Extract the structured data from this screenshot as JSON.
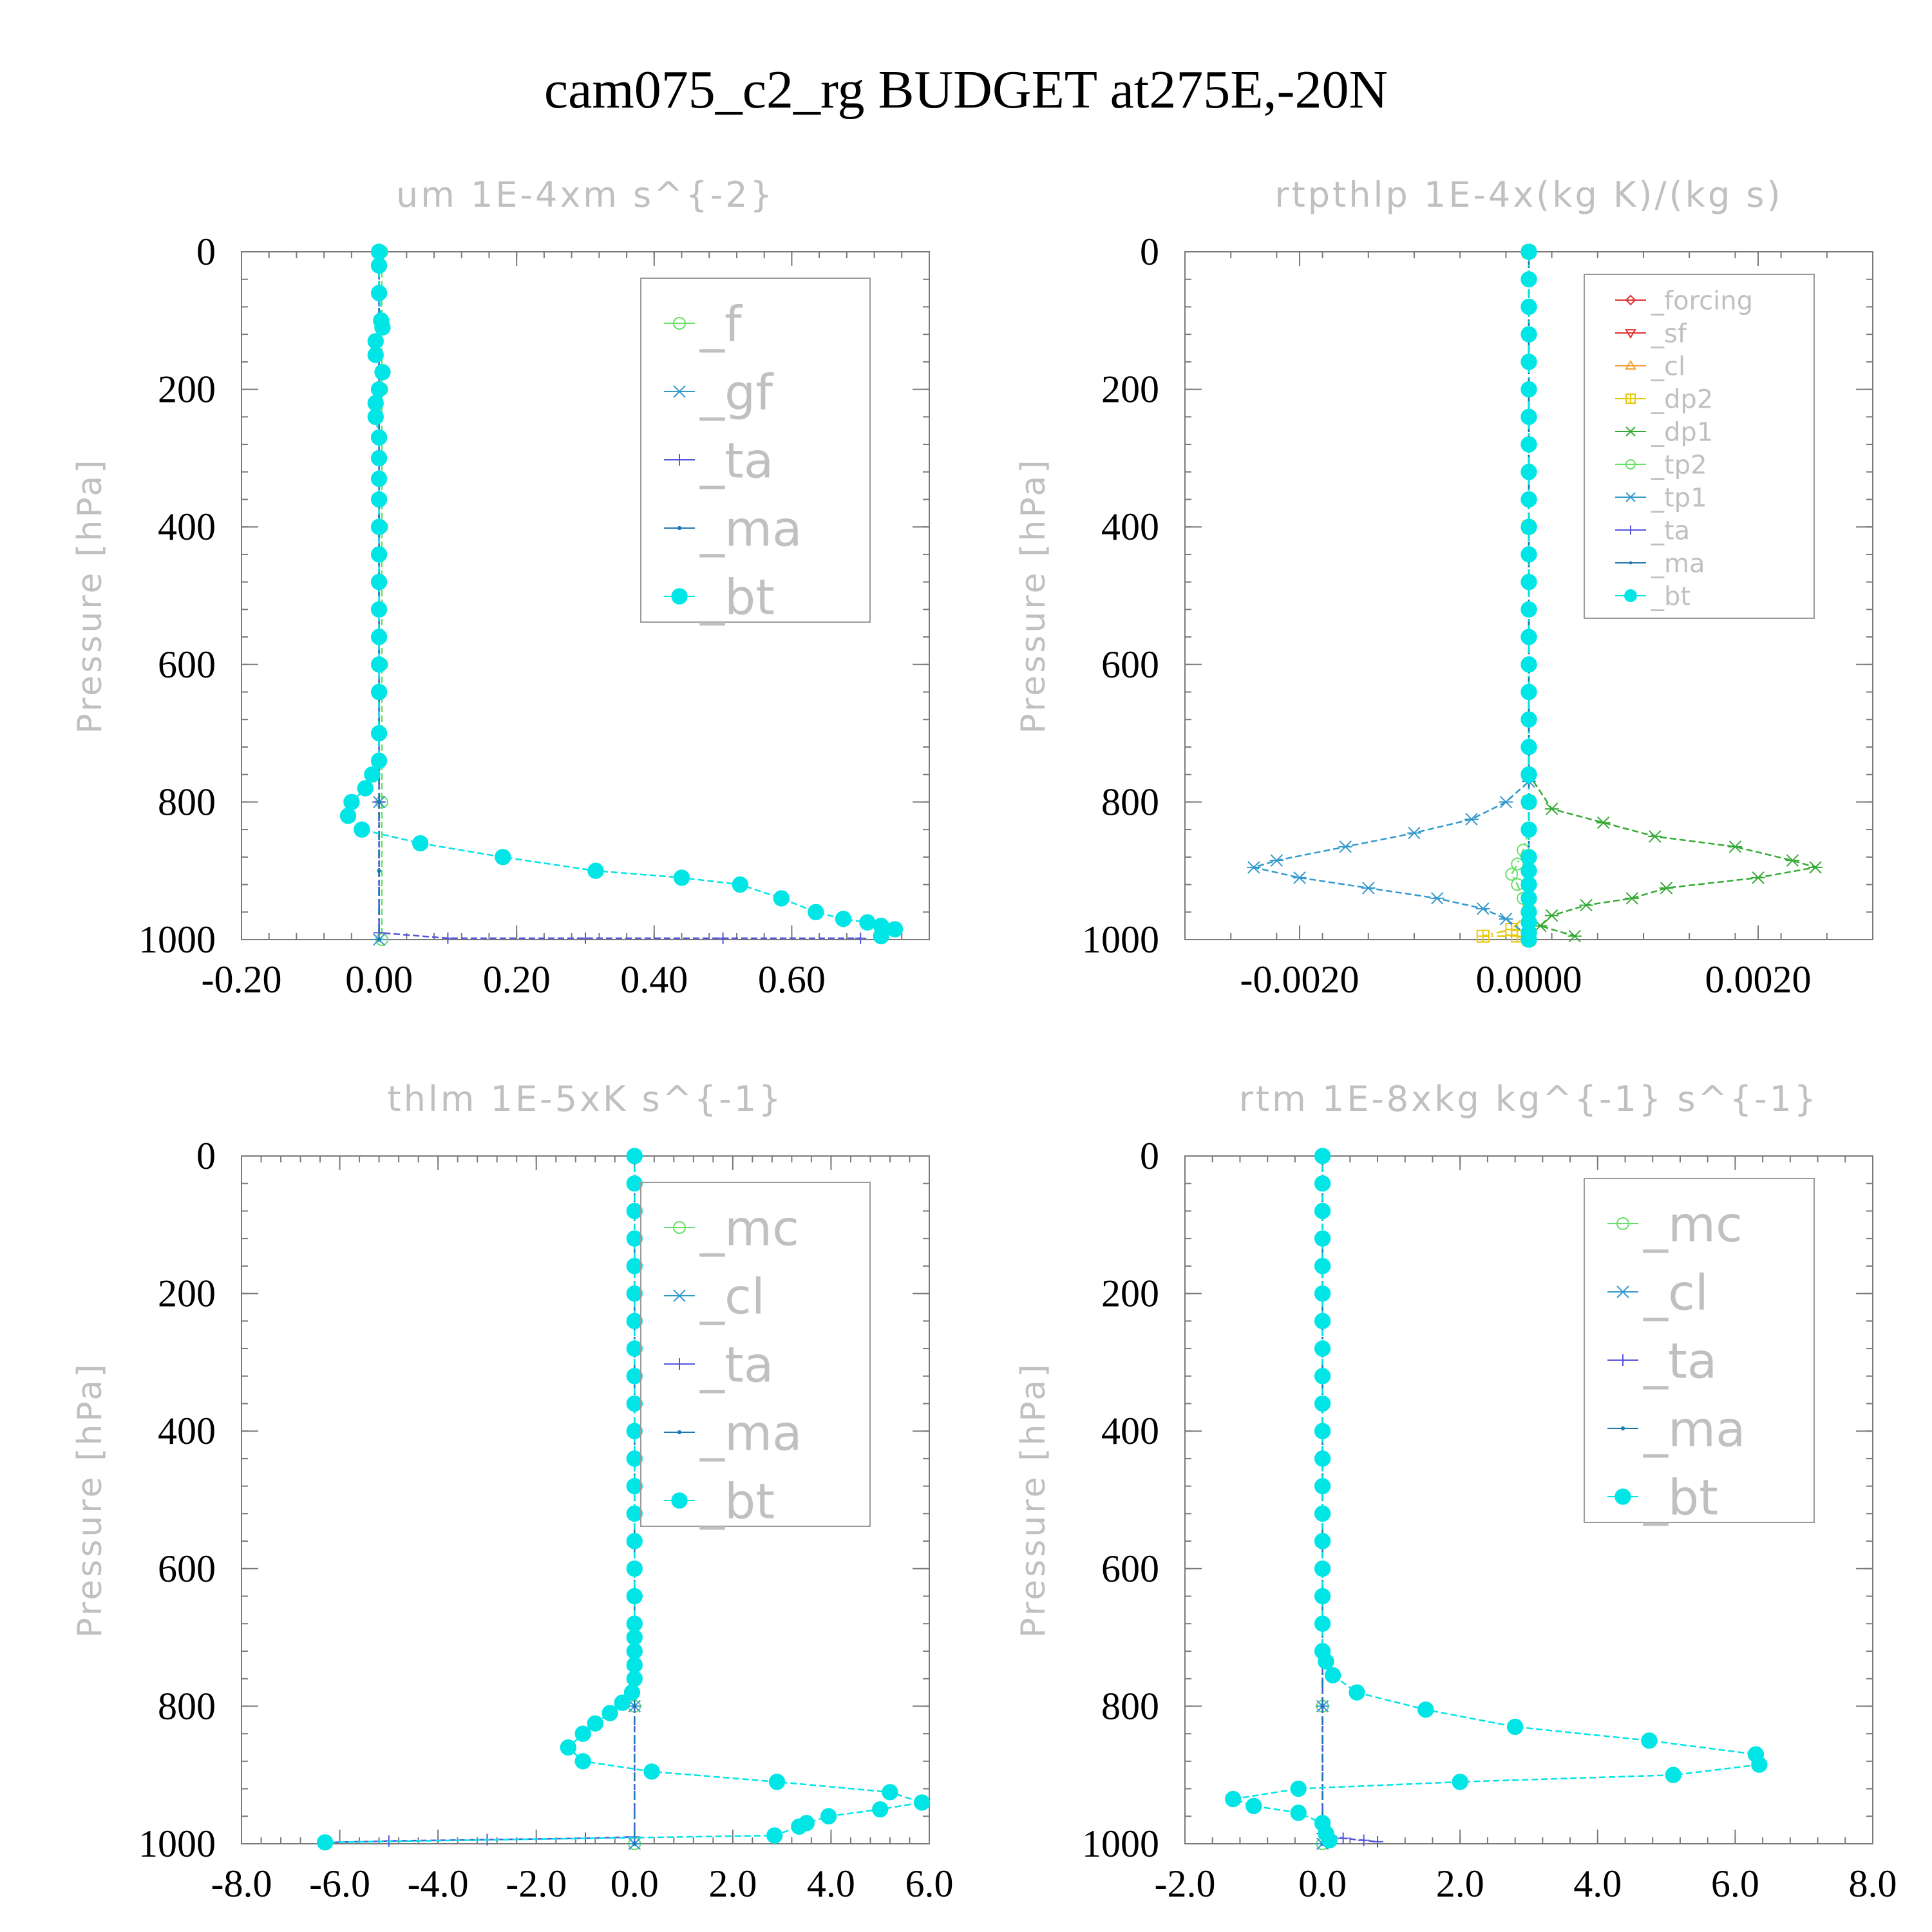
{
  "figure": {
    "title": "cam075_c2_rg  BUDGET at275E,-20N"
  },
  "chart_data": [
    {
      "type": "line",
      "title": "um  1E-4xm s^{-2}",
      "ylabel": "Pressure [hPa]",
      "xlabel": "",
      "xlim": [
        -0.2,
        0.8
      ],
      "ylim": [
        1000,
        0
      ],
      "xticks": [
        -0.2,
        0.0,
        0.2,
        0.4,
        0.6
      ],
      "xtick_labels": [
        "-0.20",
        "0.00",
        "0.20",
        "0.40",
        "0.60"
      ],
      "yticks": [
        0,
        200,
        400,
        600,
        800,
        1000
      ],
      "ytick_labels": [
        "0",
        "200",
        "400",
        "600",
        "800",
        "1000"
      ],
      "legend_location": "top-right",
      "series": [
        {
          "name": "_f",
          "color": "#66e066",
          "marker": "circle-open",
          "x": [
            0.004,
            0.004,
            0.004,
            0.004,
            0.004,
            0.004
          ],
          "y": [
            0,
            200,
            400,
            600,
            800,
            1000
          ]
        },
        {
          "name": "_gf",
          "color": "#3399cc",
          "marker": "x",
          "x": [
            0.0,
            0.0,
            0.0,
            0.0,
            0.0,
            0.0
          ],
          "y": [
            0,
            200,
            400,
            600,
            800,
            1000
          ]
        },
        {
          "name": "_ta",
          "color": "#5555dd",
          "marker": "plus",
          "x": [
            0.0,
            0.0,
            0.0,
            0.0,
            0.1,
            0.3,
            0.5,
            0.7
          ],
          "y": [
            0,
            400,
            800,
            990,
            998,
            998,
            998,
            998
          ]
        },
        {
          "name": "_ma",
          "color": "#1f77b4",
          "marker": "dot",
          "x": [
            0.0,
            0.0,
            0.0,
            0.0,
            0.0,
            0.0,
            0.0
          ],
          "y": [
            0,
            200,
            400,
            600,
            800,
            900,
            1000
          ]
        },
        {
          "name": "_bt",
          "color": "#00e5e5",
          "marker": "filled-circle",
          "x": [
            0.0,
            0.0,
            0.0,
            0.003,
            0.005,
            -0.005,
            -0.005,
            0.005,
            0.0,
            -0.005,
            -0.005,
            0.0,
            0.0,
            0.0,
            0.0,
            0.0,
            0.0,
            0.0,
            0.0,
            0.0,
            0.0,
            0.0,
            0.0,
            0.0,
            -0.01,
            -0.02,
            -0.04,
            -0.045,
            -0.025,
            0.06,
            0.18,
            0.315,
            0.44,
            0.525,
            0.585,
            0.635,
            0.675,
            0.71,
            0.73,
            0.75,
            0.73
          ],
          "y": [
            0,
            20,
            60,
            100,
            110,
            130,
            150,
            175,
            200,
            220,
            240,
            270,
            300,
            330,
            360,
            400,
            440,
            480,
            520,
            560,
            600,
            640,
            700,
            740,
            760,
            780,
            800,
            820,
            840,
            860,
            880,
            900,
            910,
            920,
            940,
            960,
            970,
            975,
            980,
            985,
            995
          ]
        }
      ]
    },
    {
      "type": "line",
      "title": "rtpthlp  1E-4x(kg K)/(kg s)",
      "ylabel": "Pressure [hPa]",
      "xlabel": "",
      "xlim": [
        -0.003,
        0.003
      ],
      "ylim": [
        1000,
        0
      ],
      "xticks": [
        -0.002,
        0.0,
        0.002
      ],
      "xtick_labels": [
        "-0.0020",
        "0.0000",
        "0.0020"
      ],
      "yticks": [
        0,
        200,
        400,
        600,
        800,
        1000
      ],
      "ytick_labels": [
        "0",
        "200",
        "400",
        "600",
        "800",
        "1000"
      ],
      "legend_location": "top-right",
      "series": [
        {
          "name": "_forcing",
          "color": "#e03030",
          "marker": "diamond",
          "x": [
            0,
            0,
            0,
            0,
            0,
            0
          ],
          "y": [
            0,
            200,
            400,
            600,
            800,
            1000
          ]
        },
        {
          "name": "_sf",
          "color": "#e03030",
          "marker": "triangle-down",
          "x": [
            0,
            0,
            0,
            0,
            0,
            0
          ],
          "y": [
            0,
            200,
            400,
            600,
            800,
            1000
          ]
        },
        {
          "name": "_cl",
          "color": "#f0a030",
          "marker": "triangle-up",
          "x": [
            0,
            0,
            0,
            0,
            0,
            0
          ],
          "y": [
            0,
            200,
            400,
            600,
            800,
            1000
          ]
        },
        {
          "name": "_dp2",
          "color": "#e8c800",
          "marker": "square-plus",
          "x": [
            0,
            0,
            0,
            0,
            -0.00015,
            -0.0004,
            -0.0001,
            0.0
          ],
          "y": [
            0,
            400,
            800,
            960,
            985,
            995,
            995,
            1000
          ]
        },
        {
          "name": "_dp1",
          "color": "#33aa33",
          "marker": "x",
          "x": [
            0.0,
            0.0,
            0.0002,
            0.00065,
            0.0011,
            0.0018,
            0.0023,
            0.0025,
            0.002,
            0.0012,
            0.0009,
            0.0005,
            0.0002,
            0.0001,
            0.0004
          ],
          "y": [
            0,
            760,
            810,
            830,
            850,
            865,
            885,
            895,
            910,
            925,
            940,
            950,
            965,
            980,
            995
          ]
        },
        {
          "name": "_tp2",
          "color": "#66e066",
          "marker": "circle-open",
          "x": [
            0.0,
            0.0,
            -5e-05,
            -0.0001,
            -0.00015,
            -0.0001,
            -5e-05,
            0.0
          ],
          "y": [
            0,
            840,
            870,
            890,
            905,
            920,
            940,
            1000
          ]
        },
        {
          "name": "_tp1",
          "color": "#3399cc",
          "marker": "x",
          "x": [
            0.0,
            0.0,
            -0.0002,
            -0.0005,
            -0.001,
            -0.0016,
            -0.0022,
            -0.0024,
            -0.002,
            -0.0014,
            -0.0008,
            -0.0004,
            -0.0002,
            0.0
          ],
          "y": [
            0,
            770,
            800,
            825,
            845,
            865,
            885,
            895,
            910,
            925,
            940,
            955,
            970,
            995
          ]
        },
        {
          "name": "_ta",
          "color": "#5555dd",
          "marker": "plus",
          "x": [
            0,
            0,
            0,
            0,
            0,
            0
          ],
          "y": [
            0,
            200,
            400,
            600,
            800,
            1000
          ]
        },
        {
          "name": "_ma",
          "color": "#1f77b4",
          "marker": "dot",
          "x": [
            0,
            0,
            0,
            0,
            0,
            0
          ],
          "y": [
            0,
            200,
            400,
            600,
            800,
            1000
          ]
        },
        {
          "name": "_bt",
          "color": "#00e5e5",
          "marker": "filled-circle",
          "x": [
            0,
            0,
            0,
            0,
            0,
            0,
            0,
            0,
            0,
            0,
            0,
            0,
            0,
            0,
            0,
            0,
            0,
            0,
            0,
            0,
            0,
            0,
            0,
            0,
            0,
            0,
            0,
            0,
            0,
            0
          ],
          "y": [
            0,
            40,
            80,
            120,
            160,
            200,
            240,
            280,
            320,
            360,
            400,
            440,
            480,
            520,
            560,
            600,
            640,
            680,
            720,
            760,
            800,
            840,
            880,
            900,
            920,
            940,
            960,
            975,
            990,
            1000
          ]
        }
      ]
    },
    {
      "type": "line",
      "title": "thlm  1E-5xK s^{-1}",
      "ylabel": "Pressure [hPa]",
      "xlabel": "",
      "xlim": [
        -8.0,
        6.0
      ],
      "ylim": [
        1000,
        0
      ],
      "xticks": [
        -8.0,
        -6.0,
        -4.0,
        -2.0,
        0.0,
        2.0,
        4.0,
        6.0
      ],
      "xtick_labels": [
        "-8.0",
        "-6.0",
        "-4.0",
        "-2.0",
        "0.0",
        "2.0",
        "4.0",
        "6.0"
      ],
      "yticks": [
        0,
        200,
        400,
        600,
        800,
        1000
      ],
      "ytick_labels": [
        "0",
        "200",
        "400",
        "600",
        "800",
        "1000"
      ],
      "legend_location": "top-right",
      "series": [
        {
          "name": "_mc",
          "color": "#66e066",
          "marker": "circle-open",
          "x": [
            0.0,
            0.0,
            0.0,
            0.0,
            0.0,
            0.0
          ],
          "y": [
            0,
            200,
            400,
            600,
            800,
            1000
          ]
        },
        {
          "name": "_cl",
          "color": "#3399cc",
          "marker": "x",
          "x": [
            0.0,
            0.0,
            0.0,
            0.0,
            0.0,
            0.0
          ],
          "y": [
            0,
            200,
            400,
            600,
            800,
            1000
          ]
        },
        {
          "name": "_ta",
          "color": "#5555dd",
          "marker": "plus",
          "x": [
            0.0,
            0.0,
            0.0,
            -1.0,
            -3.0,
            -5.0,
            -6.2
          ],
          "y": [
            0,
            400,
            990,
            992,
            994,
            996,
            998
          ]
        },
        {
          "name": "_ma",
          "color": "#1f77b4",
          "marker": "dot",
          "x": [
            0.0,
            0.0,
            0.0,
            0.0,
            0.0,
            0.0
          ],
          "y": [
            0,
            200,
            400,
            600,
            800,
            1000
          ]
        },
        {
          "name": "_bt",
          "color": "#00e5e5",
          "marker": "filled-circle",
          "x": [
            0.0,
            0.0,
            0.0,
            0.0,
            0.0,
            0.0,
            0.0,
            0.0,
            0.0,
            0.0,
            0.0,
            0.0,
            0.0,
            0.0,
            0.0,
            0.0,
            0.0,
            0.0,
            0.0,
            0.0,
            0.0,
            0.0,
            -0.05,
            -0.25,
            -0.5,
            -0.8,
            -1.05,
            -1.35,
            -1.05,
            0.35,
            2.9,
            5.2,
            5.85,
            5.0,
            3.95,
            3.5,
            3.35,
            2.85,
            -6.3
          ],
          "y": [
            0,
            40,
            80,
            120,
            160,
            200,
            240,
            280,
            320,
            360,
            400,
            440,
            480,
            520,
            560,
            600,
            640,
            680,
            700,
            720,
            740,
            760,
            780,
            795,
            810,
            825,
            840,
            860,
            880,
            895,
            910,
            925,
            940,
            950,
            960,
            970,
            975,
            988,
            998
          ]
        }
      ]
    },
    {
      "type": "line",
      "title": "rtm  1E-8xkg kg^{-1} s^{-1}",
      "ylabel": "Pressure [hPa]",
      "xlabel": "",
      "xlim": [
        -2.0,
        8.0
      ],
      "ylim": [
        1000,
        0
      ],
      "xticks": [
        -2.0,
        0.0,
        2.0,
        4.0,
        6.0,
        8.0
      ],
      "xtick_labels": [
        "-2.0",
        "0.0",
        "2.0",
        "4.0",
        "6.0",
        "8.0"
      ],
      "yticks": [
        0,
        200,
        400,
        600,
        800,
        1000
      ],
      "ytick_labels": [
        "0",
        "200",
        "400",
        "600",
        "800",
        "1000"
      ],
      "legend_location": "top-right",
      "series": [
        {
          "name": "_mc",
          "color": "#66e066",
          "marker": "circle-open",
          "x": [
            0.0,
            0.0,
            0.0,
            0.0,
            0.0,
            0.0
          ],
          "y": [
            0,
            200,
            400,
            600,
            800,
            1000
          ]
        },
        {
          "name": "_cl",
          "color": "#3399cc",
          "marker": "x",
          "x": [
            0.0,
            0.0,
            0.0,
            0.0,
            0.0,
            0.0
          ],
          "y": [
            0,
            200,
            400,
            600,
            800,
            1000
          ]
        },
        {
          "name": "_ta",
          "color": "#5555dd",
          "marker": "plus",
          "x": [
            0.0,
            0.0,
            0.0,
            0.3,
            0.6,
            0.8
          ],
          "y": [
            0,
            400,
            985,
            992,
            995,
            997
          ]
        },
        {
          "name": "_ma",
          "color": "#1f77b4",
          "marker": "dot",
          "x": [
            0.0,
            0.0,
            0.0,
            0.0,
            0.0,
            0.0
          ],
          "y": [
            0,
            200,
            400,
            600,
            800,
            1000
          ]
        },
        {
          "name": "_bt",
          "color": "#00e5e5",
          "marker": "filled-circle",
          "x": [
            0.0,
            0.0,
            0.0,
            0.0,
            0.0,
            0.0,
            0.0,
            0.0,
            0.0,
            0.0,
            0.0,
            0.0,
            0.0,
            0.0,
            0.0,
            0.0,
            0.0,
            0.0,
            0.0,
            0.05,
            0.15,
            0.5,
            1.5,
            2.8,
            4.75,
            6.3,
            6.35,
            5.1,
            2.0,
            -0.35,
            -1.3,
            -1.0,
            -0.35,
            0.0,
            0.05,
            0.1
          ],
          "y": [
            0,
            40,
            80,
            120,
            160,
            200,
            240,
            280,
            320,
            360,
            400,
            440,
            480,
            520,
            560,
            600,
            640,
            680,
            720,
            735,
            755,
            780,
            805,
            830,
            850,
            870,
            885,
            900,
            910,
            920,
            935,
            945,
            955,
            970,
            985,
            995
          ]
        }
      ]
    }
  ]
}
